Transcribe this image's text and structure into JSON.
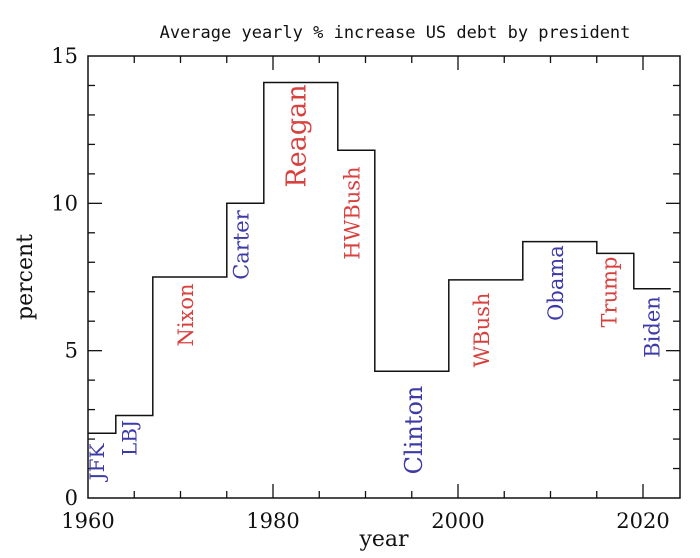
{
  "chart_data": {
    "type": "line",
    "title": "Average yearly % increase US debt by president",
    "xlabel": "year",
    "ylabel": "percent",
    "xlim": [
      1960,
      2024
    ],
    "ylim": [
      0,
      15
    ],
    "x_ticks": [
      1960,
      1980,
      2000,
      2020
    ],
    "y_ticks": [
      0,
      5,
      10,
      15
    ],
    "colors": {
      "red": "#d9413f",
      "blue": "#3d3aa8",
      "line": "#111111"
    },
    "series": [
      {
        "name": "JFK",
        "start": 1960,
        "end": 1963,
        "value": 2.2,
        "color": "blue"
      },
      {
        "name": "LBJ",
        "start": 1963,
        "end": 1967,
        "value": 2.8,
        "color": "blue"
      },
      {
        "name": "Nixon",
        "start": 1967,
        "end": 1975,
        "value": 7.5,
        "color": "red"
      },
      {
        "name": "Carter",
        "start": 1975,
        "end": 1979,
        "value": 10.0,
        "color": "blue"
      },
      {
        "name": "Reagan",
        "start": 1979,
        "end": 1987,
        "value": 14.1,
        "color": "red"
      },
      {
        "name": "HWBush",
        "start": 1987,
        "end": 1991,
        "value": 11.8,
        "color": "red"
      },
      {
        "name": "Clinton",
        "start": 1991,
        "end": 1999,
        "value": 4.3,
        "color": "blue"
      },
      {
        "name": "WBush",
        "start": 1999,
        "end": 2007,
        "value": 7.4,
        "color": "red"
      },
      {
        "name": "Obama",
        "start": 2007,
        "end": 2015,
        "value": 8.7,
        "color": "blue"
      },
      {
        "name": "Trump",
        "start": 2015,
        "end": 2019,
        "value": 8.3,
        "color": "red"
      },
      {
        "name": "Biden",
        "start": 2019,
        "end": 2023,
        "value": 7.1,
        "color": "blue"
      }
    ]
  }
}
